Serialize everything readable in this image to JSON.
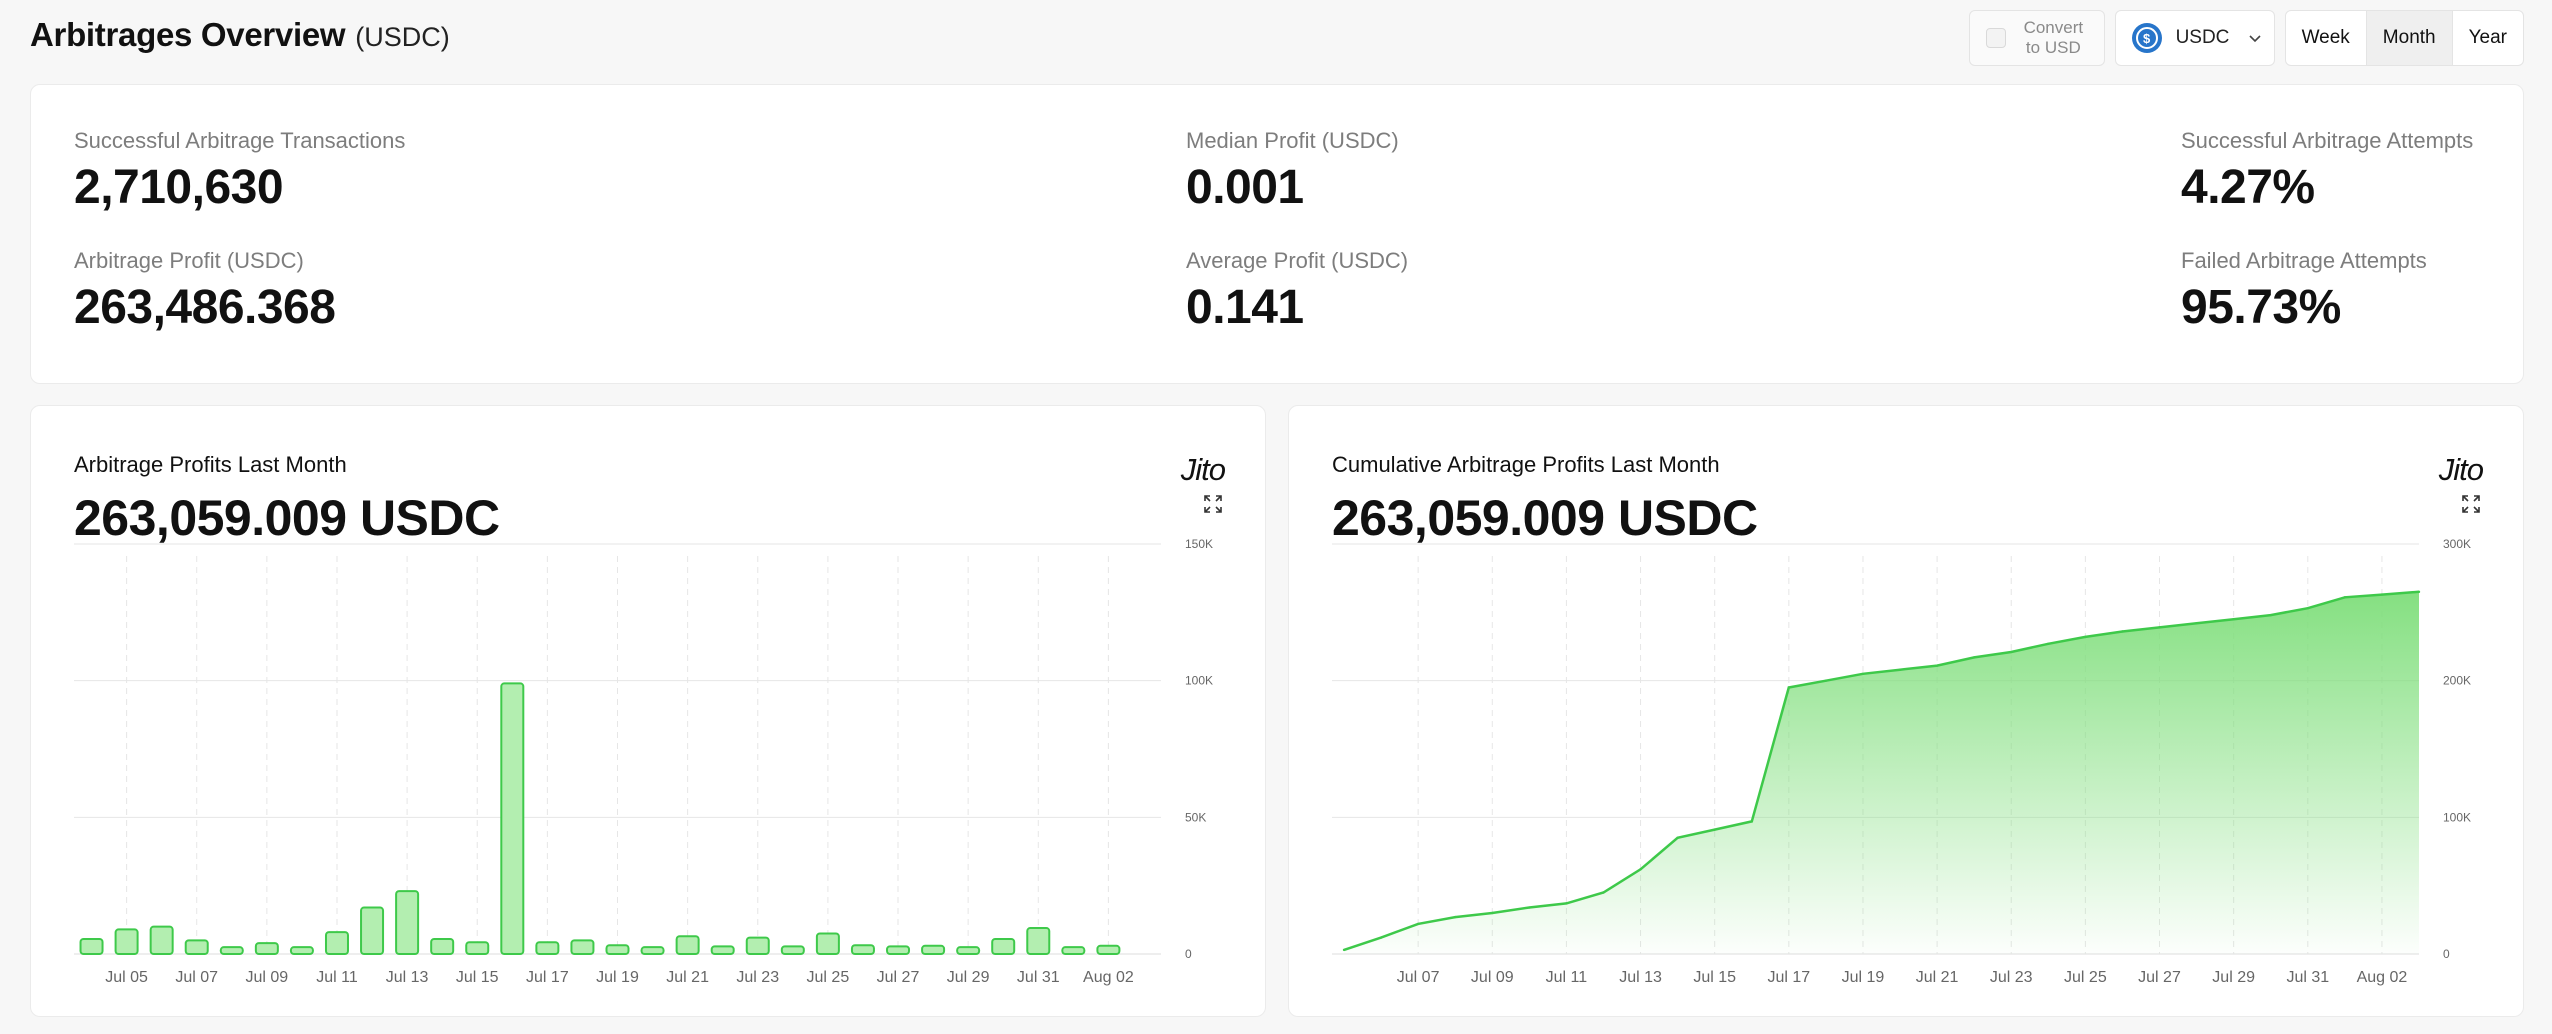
{
  "header": {
    "title": "Arbitrages Overview",
    "unit": "(USDC)"
  },
  "controls": {
    "convert_label_line1": "Convert",
    "convert_label_line2": "to USD",
    "token": "USDC",
    "periods": [
      "Week",
      "Month",
      "Year"
    ],
    "active_period": "Month"
  },
  "stats": {
    "successful_tx": {
      "label": "Successful Arbitrage Transactions",
      "value": "2,710,630"
    },
    "profit": {
      "label": "Arbitrage Profit (USDC)",
      "value": "263,486.368"
    },
    "median": {
      "label": "Median Profit (USDC)",
      "value": "0.001"
    },
    "average": {
      "label": "Average Profit (USDC)",
      "value": "0.141"
    },
    "success_rate": {
      "label": "Successful Arbitrage Attempts",
      "value": "4.27%"
    },
    "fail_rate": {
      "label": "Failed Arbitrage Attempts",
      "value": "95.73%"
    }
  },
  "cards": {
    "daily": {
      "title": "Arbitrage Profits Last Month",
      "total": "263,059.009 USDC",
      "logo": "Jito"
    },
    "cumulative": {
      "title": "Cumulative Arbitrage Profits Last Month",
      "total": "263,059.009 USDC",
      "logo": "Jito"
    }
  },
  "colors": {
    "green_line": "#3ec94a",
    "green_fill": "#b3eeb0",
    "grid": "#e6e6e6",
    "axis_text": "#666666",
    "usdc_blue": "#2775ca"
  },
  "chart_data": [
    {
      "type": "bar",
      "title": "Arbitrage Profits Last Month",
      "categories": [
        "Jul 04",
        "Jul 05",
        "Jul 06",
        "Jul 07",
        "Jul 08",
        "Jul 09",
        "Jul 10",
        "Jul 11",
        "Jul 12",
        "Jul 13",
        "Jul 14",
        "Jul 15",
        "Jul 16",
        "Jul 17",
        "Jul 18",
        "Jul 19",
        "Jul 20",
        "Jul 21",
        "Jul 22",
        "Jul 23",
        "Jul 24",
        "Jul 25",
        "Jul 26",
        "Jul 27",
        "Jul 28",
        "Jul 29",
        "Jul 30",
        "Jul 31",
        "Aug 01",
        "Aug 02",
        "Aug 03"
      ],
      "values": [
        5500,
        9000,
        10000,
        5000,
        2500,
        4000,
        2500,
        8000,
        17000,
        23000,
        5500,
        4300,
        99000,
        4300,
        5000,
        3200,
        2500,
        6500,
        2800,
        6000,
        2800,
        7500,
        3200,
        2800,
        3000,
        2500,
        5500,
        9500,
        2500,
        3000,
        0
      ],
      "tick_labels": [
        "Jul 05",
        "Jul 07",
        "Jul 09",
        "Jul 11",
        "Jul 13",
        "Jul 15",
        "Jul 17",
        "Jul 19",
        "Jul 21",
        "Jul 23",
        "Jul 25",
        "Jul 27",
        "Jul 29",
        "Jul 31",
        "Aug 02"
      ],
      "y_ticks": [
        "0",
        "50K",
        "100K",
        "150K"
      ],
      "ylim": [
        0,
        150000
      ],
      "grid": true
    },
    {
      "type": "area",
      "title": "Cumulative Arbitrage Profits Last Month",
      "categories": [
        "Jul 05",
        "Jul 06",
        "Jul 07",
        "Jul 08",
        "Jul 09",
        "Jul 10",
        "Jul 11",
        "Jul 12",
        "Jul 13",
        "Jul 14",
        "Jul 15",
        "Jul 16",
        "Jul 17",
        "Jul 18",
        "Jul 19",
        "Jul 20",
        "Jul 21",
        "Jul 22",
        "Jul 23",
        "Jul 24",
        "Jul 25",
        "Jul 26",
        "Jul 27",
        "Jul 28",
        "Jul 29",
        "Jul 30",
        "Jul 31",
        "Aug 01",
        "Aug 02",
        "Aug 03"
      ],
      "values": [
        3000,
        12000,
        22000,
        27000,
        30000,
        34000,
        37000,
        45000,
        62000,
        85000,
        91000,
        97000,
        195000,
        200000,
        205000,
        208000,
        211000,
        217000,
        221000,
        227000,
        232000,
        236000,
        239000,
        242000,
        245000,
        248000,
        253000,
        261000,
        263000,
        265000
      ],
      "tick_labels": [
        "Jul 07",
        "Jul 09",
        "Jul 11",
        "Jul 13",
        "Jul 15",
        "Jul 17",
        "Jul 19",
        "Jul 21",
        "Jul 23",
        "Jul 25",
        "Jul 27",
        "Jul 29",
        "Jul 31",
        "Aug 02"
      ],
      "y_ticks": [
        "0",
        "100K",
        "200K",
        "300K"
      ],
      "ylim": [
        0,
        300000
      ],
      "grid": true
    }
  ]
}
